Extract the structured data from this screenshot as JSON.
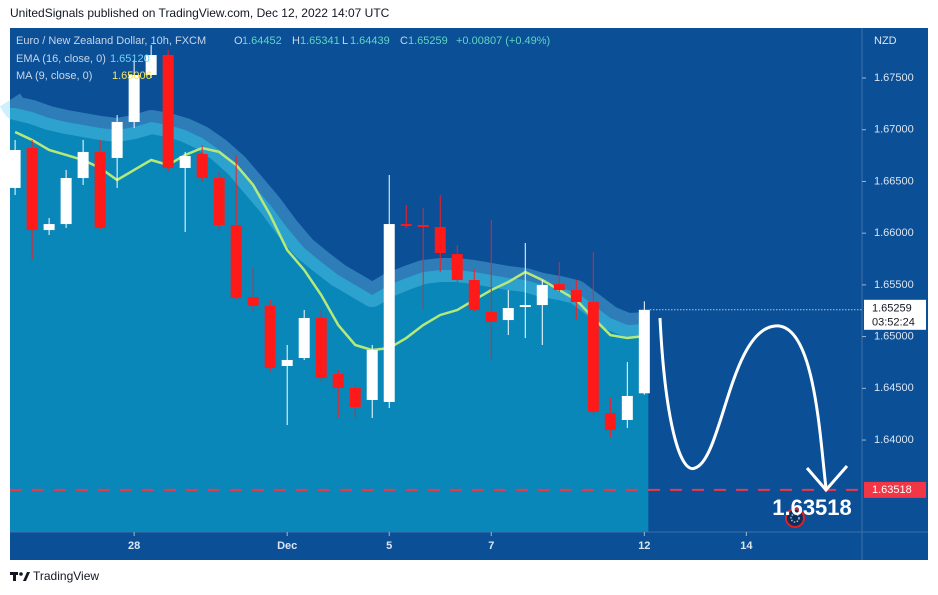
{
  "header": {
    "text": "UnitedSignals published on TradingView.com, Dec 12, 2022 14:07 UTC"
  },
  "footer": {
    "brand": "TradingView"
  },
  "chart_data": {
    "type": "candlestick",
    "title": "Euro / New Zealand Dollar, 10h, FXCM",
    "currency": "NZD",
    "ohlc_labels": {
      "open": "O",
      "high": "H",
      "low": "L",
      "close": "C"
    },
    "change": "+0.00807 (+0.49%)",
    "countdown": "03:52:24",
    "x": [
      0,
      1,
      2,
      3,
      4,
      5,
      6,
      7,
      8,
      9,
      10,
      11,
      12,
      13,
      14,
      15,
      16,
      17,
      18,
      19,
      20,
      21,
      22,
      23,
      24,
      25,
      26,
      27,
      28,
      29,
      30,
      31,
      32,
      33,
      34,
      35,
      36,
      37
    ],
    "open": [
      1.66437,
      1.66823,
      1.6603,
      1.66088,
      1.66533,
      1.66785,
      1.66727,
      1.67075,
      1.67529,
      1.67722,
      1.6663,
      1.66765,
      1.66533,
      1.66079,
      1.65383,
      1.65296,
      1.64716,
      1.64793,
      1.6518,
      1.64638,
      1.64503,
      1.64387,
      1.64368,
      1.66088,
      1.66079,
      1.6606,
      1.65798,
      1.65547,
      1.65238,
      1.6516,
      1.65286,
      1.65305,
      1.65508,
      1.6545,
      1.65334,
      1.64261,
      1.64194,
      1.64452
    ],
    "high": [
      1.66901,
      1.66901,
      1.66146,
      1.66611,
      1.66901,
      1.66901,
      1.67142,
      1.67674,
      1.67819,
      1.67771,
      1.66785,
      1.66852,
      1.66591,
      1.66756,
      1.65663,
      1.65354,
      1.64919,
      1.65257,
      1.65257,
      1.64677,
      1.64532,
      1.64919,
      1.66562,
      1.66272,
      1.66243,
      1.66369,
      1.65885,
      1.65644,
      1.66127,
      1.6545,
      1.65905,
      1.65547,
      1.65721,
      1.65547,
      1.65818,
      1.64406,
      1.64754,
      1.65341
    ],
    "low": [
      1.66369,
      1.6574,
      1.65982,
      1.6605,
      1.66466,
      1.6603,
      1.66437,
      1.67017,
      1.675,
      1.66591,
      1.66011,
      1.66495,
      1.6603,
      1.65354,
      1.65238,
      1.64658,
      1.64145,
      1.64774,
      1.64561,
      1.64213,
      1.64213,
      1.64213,
      1.6431,
      1.6605,
      1.65257,
      1.65624,
      1.65528,
      1.65238,
      1.64774,
      1.65015,
      1.64986,
      1.64919,
      1.65431,
      1.6516,
      1.64242,
      1.6402,
      1.64116,
      1.64439
    ],
    "close": [
      1.66804,
      1.6603,
      1.66088,
      1.66533,
      1.66785,
      1.6605,
      1.67075,
      1.67529,
      1.67722,
      1.6663,
      1.66746,
      1.66533,
      1.66079,
      1.65373,
      1.65296,
      1.64696,
      1.64774,
      1.6518,
      1.646,
      1.64503,
      1.64319,
      1.6487,
      1.66088,
      1.66069,
      1.6606,
      1.65808,
      1.65547,
      1.65257,
      1.65141,
      1.65276,
      1.65305,
      1.65499,
      1.6545,
      1.65334,
      1.64271,
      1.64097,
      1.64426,
      1.65259
    ],
    "up_color": "#ffffff",
    "down_color": "#ff1a1a",
    "series": [
      {
        "name": "EMA (16, close, 0)",
        "color": "#6fd3f5",
        "last_label": "1.65120",
        "values": [
          1.6721,
          1.67171,
          1.67113,
          1.67075,
          1.67046,
          1.67017,
          1.66997,
          1.67026,
          1.67075,
          1.67046,
          1.66997,
          1.6692,
          1.66804,
          1.66659,
          1.66466,
          1.66272,
          1.6605,
          1.65856,
          1.65721,
          1.65595,
          1.65499,
          1.65402,
          1.65499,
          1.65566,
          1.65624,
          1.65644,
          1.65644,
          1.65624,
          1.65595,
          1.65566,
          1.65547,
          1.65499,
          1.6547,
          1.65431,
          1.65305,
          1.6518,
          1.65112,
          1.6512
        ]
      },
      {
        "name": "MA (9, close, 0)",
        "color": "#b5ea7a",
        "values": [
          1.66978,
          1.66901,
          1.66804,
          1.66756,
          1.66707,
          1.6663,
          1.66514,
          1.66611,
          1.66707,
          1.66659,
          1.66756,
          1.66823,
          1.66785,
          1.66659,
          1.66466,
          1.66175,
          1.65837,
          1.65644,
          1.65402,
          1.65112,
          1.64919,
          1.6487,
          1.64889,
          1.64986,
          1.65112,
          1.65209,
          1.65257,
          1.65354,
          1.6545,
          1.65528,
          1.65624,
          1.65547,
          1.6545,
          1.65354,
          1.6518,
          1.65015,
          1.64986,
          1.65006
        ]
      }
    ],
    "hline": {
      "value": 1.63518,
      "color": "#f23645"
    },
    "xlim": [
      -0.3,
      49.8
    ],
    "ylim": [
      1.63111,
      1.67964
    ],
    "xticks": [
      {
        "value": 7,
        "label": "28"
      },
      {
        "value": 16,
        "label": "Dec"
      },
      {
        "value": 22,
        "label": "5"
      },
      {
        "value": 28,
        "label": "7"
      },
      {
        "value": 37,
        "label": "12"
      },
      {
        "value": 43,
        "label": "14"
      }
    ],
    "yticks": [
      {
        "value": 1.675,
        "label": "1.67500"
      },
      {
        "value": 1.67,
        "label": "1.67000"
      },
      {
        "value": 1.665,
        "label": "1.66500"
      },
      {
        "value": 1.66,
        "label": "1.66000"
      },
      {
        "value": 1.655,
        "label": "1.65500"
      },
      {
        "value": 1.65,
        "label": "1.65000"
      },
      {
        "value": 1.645,
        "label": "1.64500"
      },
      {
        "value": 1.64,
        "label": "1.64000"
      }
    ],
    "grid": false
  }
}
